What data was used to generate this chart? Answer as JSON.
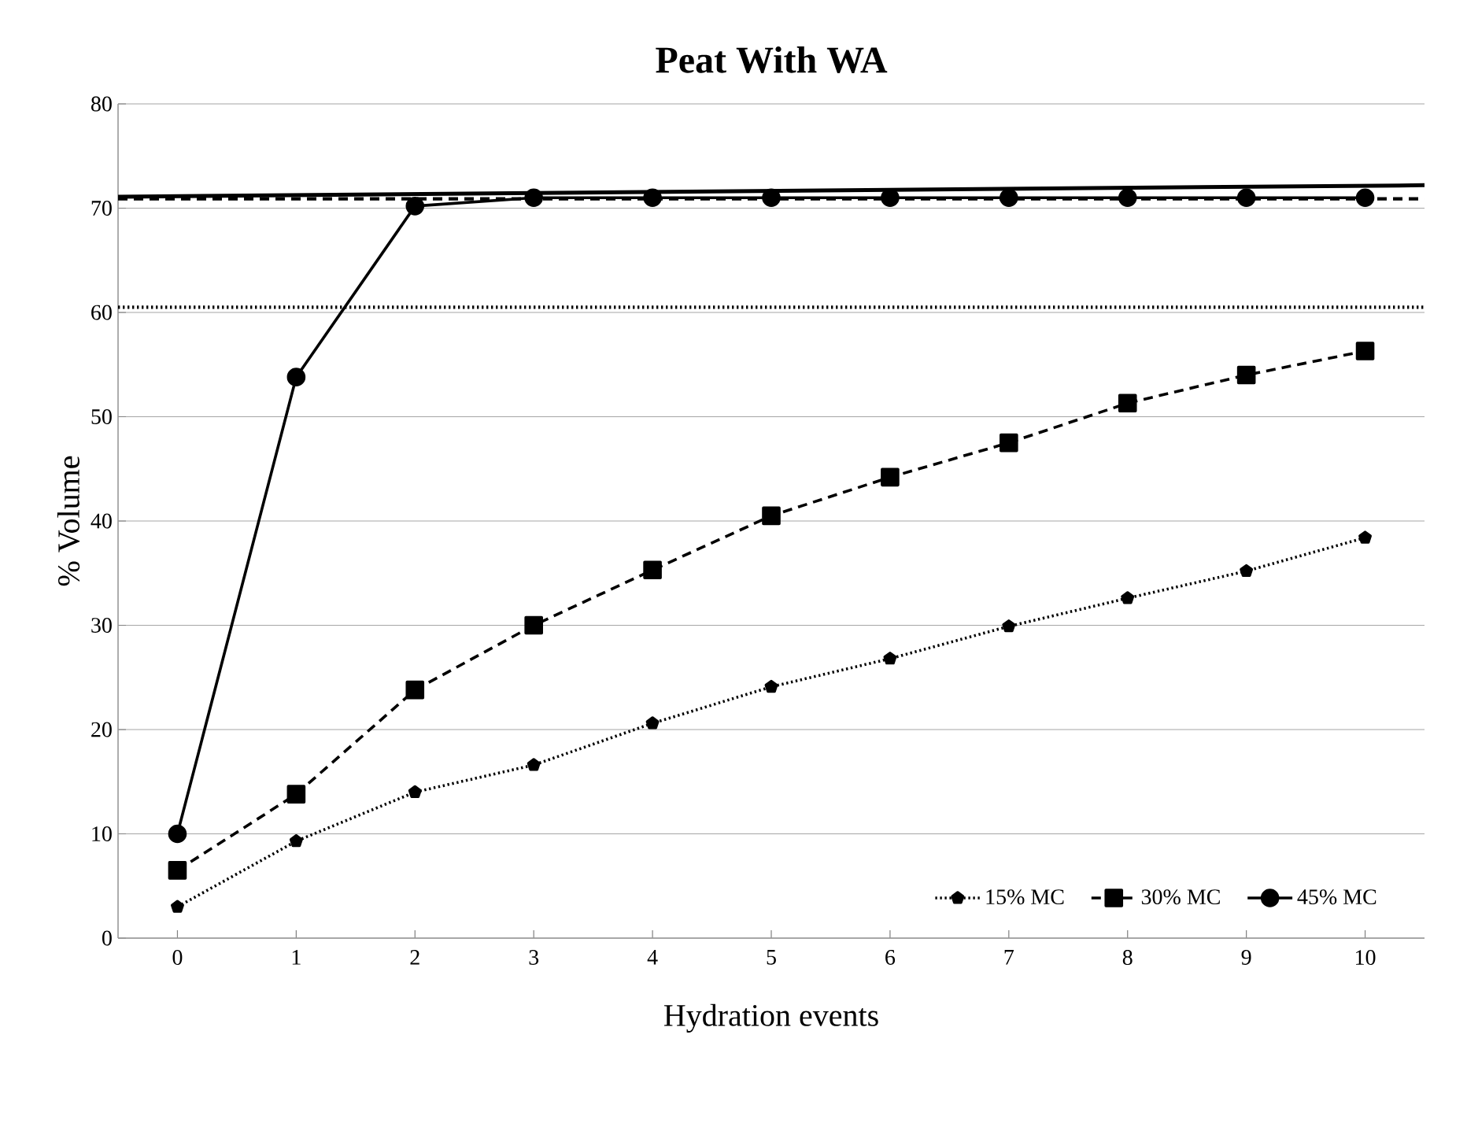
{
  "chart_data": {
    "type": "line",
    "title": "Peat With WA",
    "xlabel": "Hydration events",
    "ylabel": "% Volume",
    "x": [
      0,
      1,
      2,
      3,
      4,
      5,
      6,
      7,
      8,
      9,
      10
    ],
    "xlim": [
      -0.5,
      10.5
    ],
    "xticks": [
      0,
      1,
      2,
      3,
      4,
      5,
      6,
      7,
      8,
      9,
      10
    ],
    "ylim": [
      0,
      80
    ],
    "yticks": [
      0,
      10,
      20,
      30,
      40,
      50,
      60,
      70,
      80
    ],
    "grid": "y",
    "legend": "bottom right",
    "series": [
      {
        "name": "15% MC",
        "color": "#000000",
        "marker": "star",
        "line_style": "dotted",
        "values": [
          3,
          9.3,
          14,
          16.6,
          20.6,
          24.1,
          26.8,
          29.9,
          32.6,
          35.2,
          38.4
        ]
      },
      {
        "name": "30% MC",
        "color": "#000000",
        "marker": "square",
        "line_style": "dashed",
        "values": [
          6.5,
          13.8,
          23.8,
          30,
          35.3,
          40.5,
          44.2,
          47.5,
          51.3,
          54,
          56.3
        ]
      },
      {
        "name": "45% MC",
        "color": "#000000",
        "marker": "circle",
        "line_style": "solid",
        "values": [
          10,
          53.8,
          70.2,
          71,
          71,
          71,
          71,
          71,
          71,
          71,
          71
        ]
      },
      {
        "color": "#000000",
        "marker": "none",
        "line_style": "solid",
        "x": [
          -0.5,
          10.5
        ],
        "values": [
          71.1,
          72.2
        ]
      }
    ],
    "ref_lines": [
      {
        "axis": "y",
        "value": 60.5,
        "line_style": "dotted",
        "color": "#000000"
      },
      {
        "axis": "y",
        "value": 70.9,
        "line_style": "dashed",
        "color": "#000000"
      }
    ]
  }
}
